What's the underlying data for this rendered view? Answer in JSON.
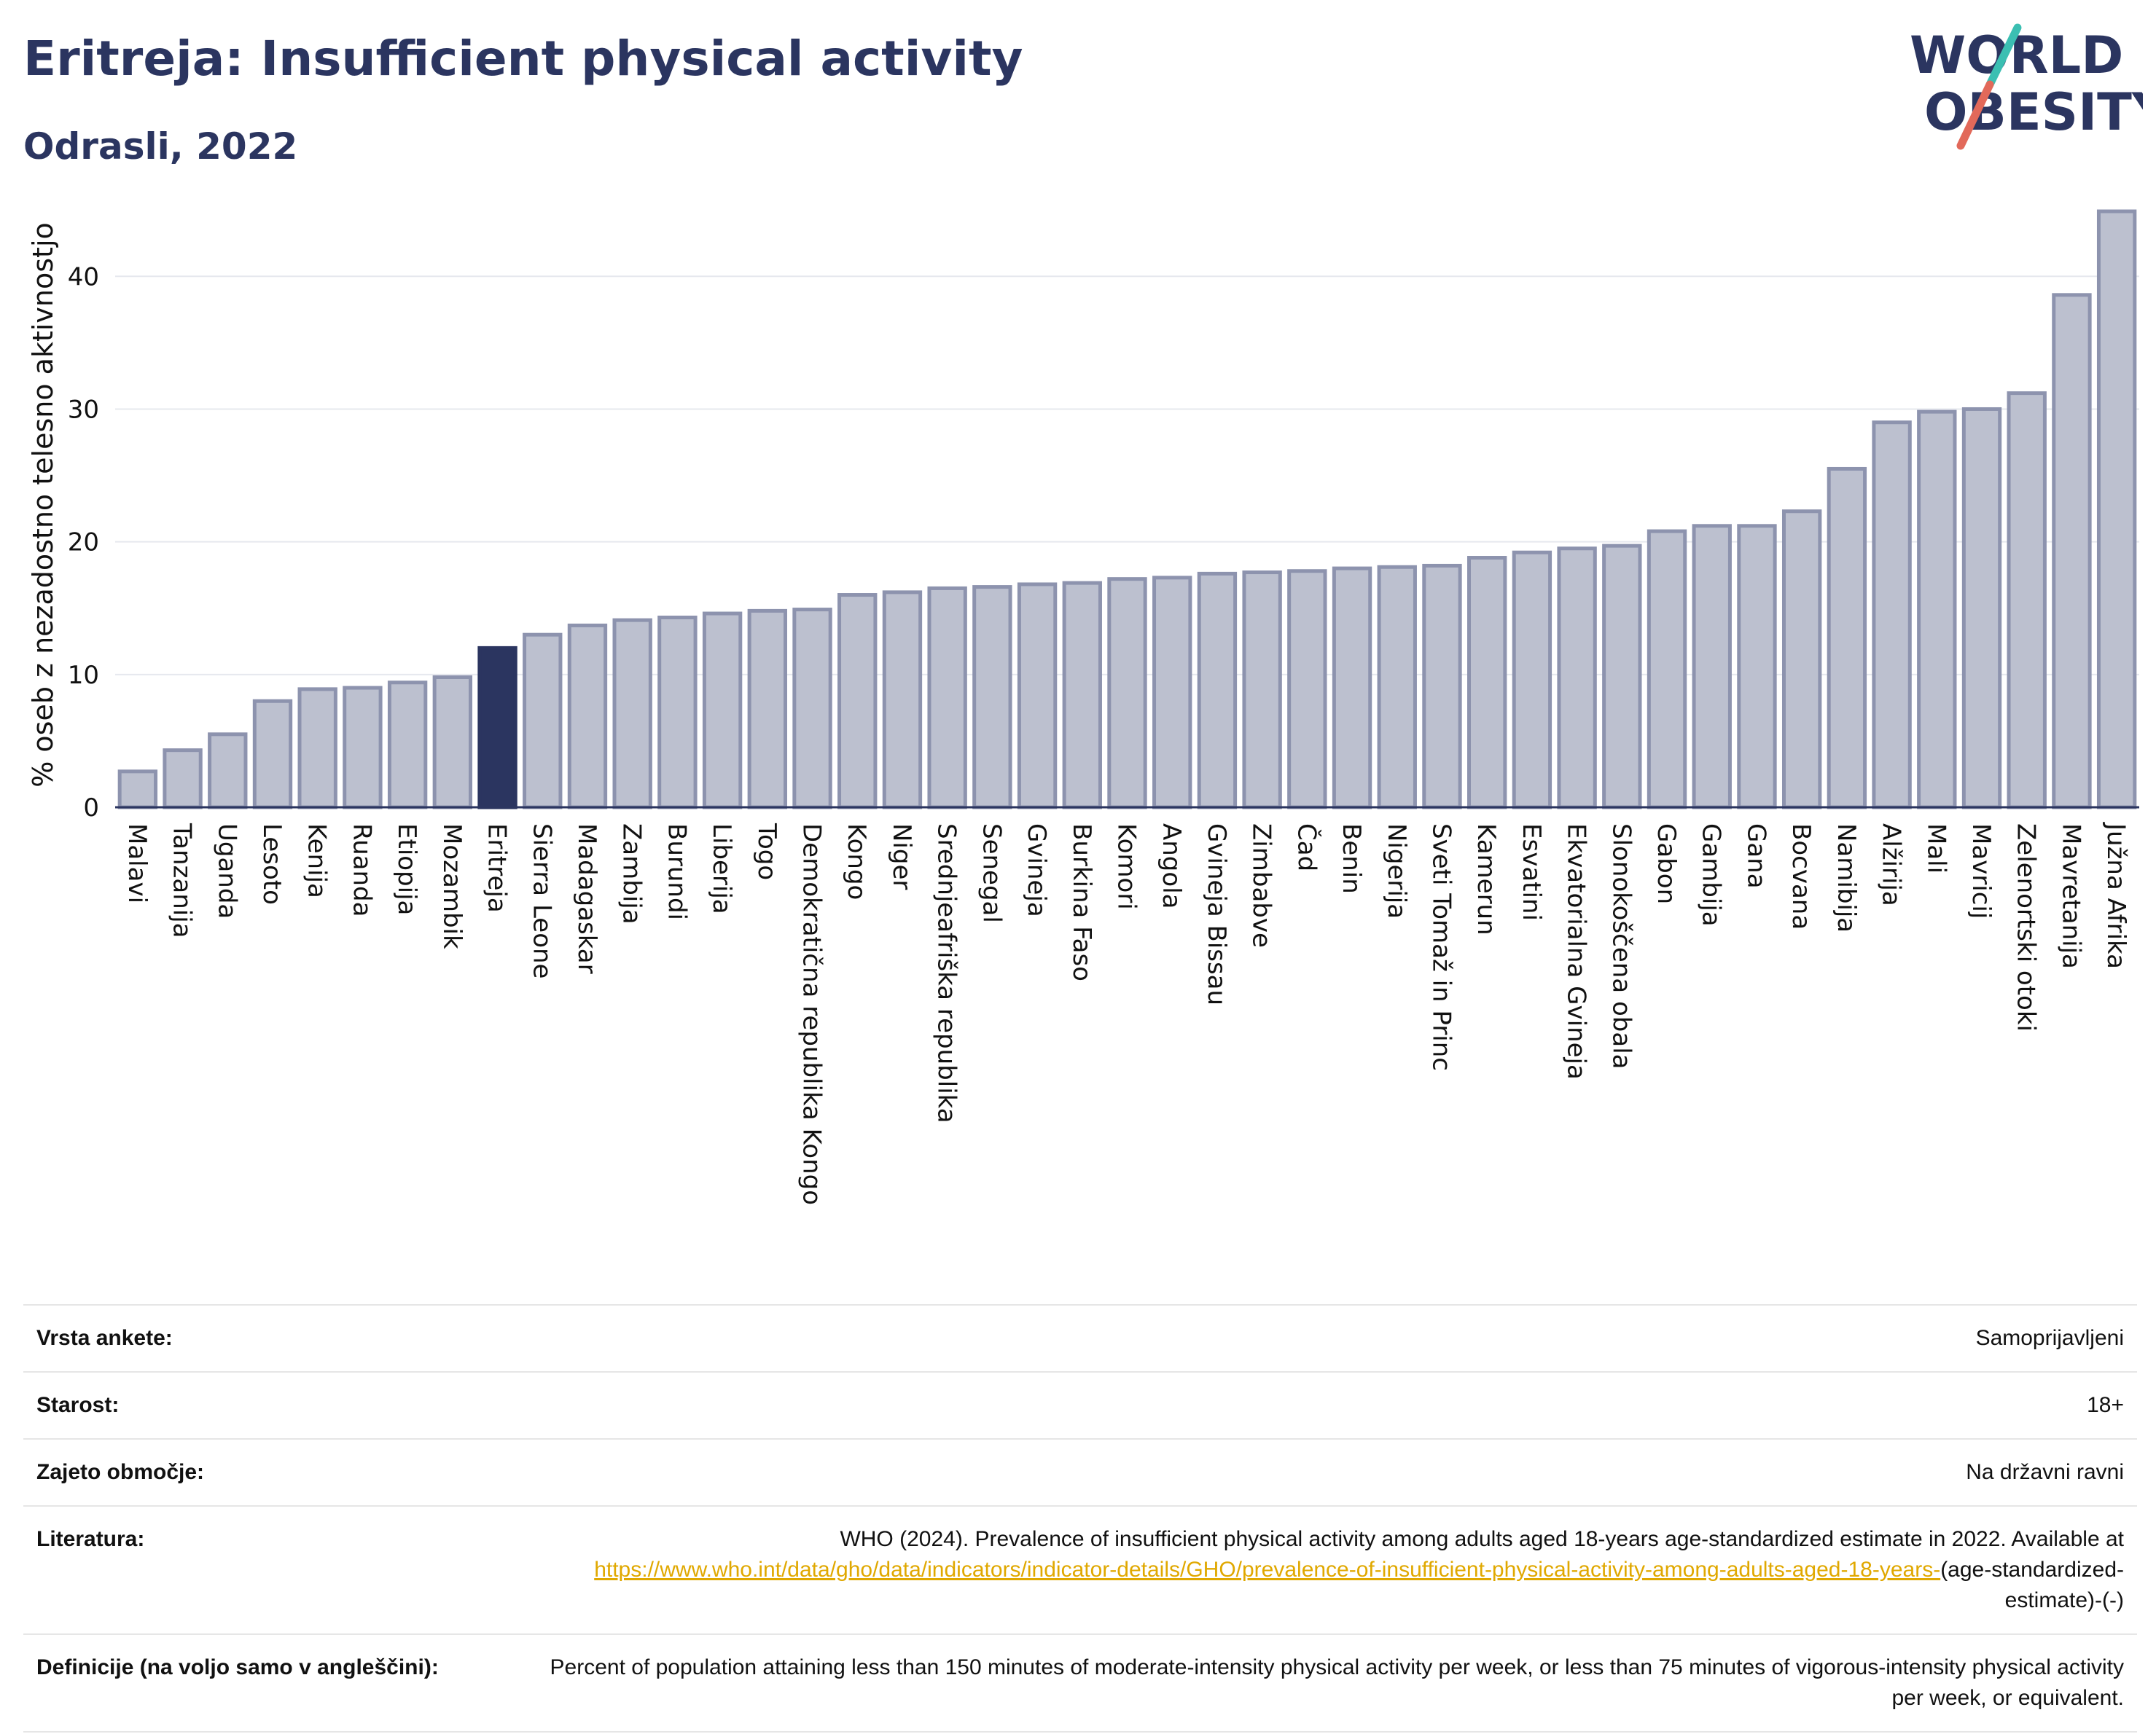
{
  "header": {
    "title": "Eritreja: Insufficient physical activity",
    "subtitle": "Odrasli, 2022"
  },
  "logo": {
    "line1": "WORLD",
    "line2": "OBESITY"
  },
  "colors": {
    "bar": "#bcc0cf",
    "bar_border": "#8d93ae",
    "highlight": "#2b3560",
    "slash_teal": "#3bbfb2",
    "slash_red": "#e2695a"
  },
  "chart_data": {
    "type": "bar",
    "title": "Eritreja: Insufficient physical activity",
    "subtitle": "Odrasli, 2022",
    "xlabel": "",
    "ylabel": "% oseb z nezadostno telesno aktivnostjo",
    "ylim": [
      0,
      46
    ],
    "yticks": [
      0,
      10,
      20,
      30,
      40
    ],
    "grid": true,
    "highlight": "Eritreja",
    "categories": [
      "Malavi",
      "Tanzanija",
      "Uganda",
      "Lesoto",
      "Kenija",
      "Ruanda",
      "Etiopija",
      "Mozambik",
      "Eritreja",
      "Sierra Leone",
      "Madagaskar",
      "Zambija",
      "Burundi",
      "Liberija",
      "Togo",
      "Demokratična republika Kongo",
      "Kongo",
      "Niger",
      "Srednjeafriška republika",
      "Senegal",
      "Gvineja",
      "Burkina Faso",
      "Komori",
      "Angola",
      "Gvineja Bissau",
      "Zimbabve",
      "Čad",
      "Benin",
      "Nigerija",
      "Sveti Tomaž in Princ",
      "Kamerun",
      "Esvatini",
      "Ekvatorialna Gvineja",
      "Slonokoščena obala",
      "Gabon",
      "Gambija",
      "Gana",
      "Bocvana",
      "Namibija",
      "Alžirija",
      "Mali",
      "Mavricij",
      "Zelenortski otoki",
      "Mavretanija",
      "Južna Afrika"
    ],
    "values": [
      2.7,
      4.3,
      5.5,
      8.0,
      8.9,
      9.0,
      9.4,
      9.8,
      12.0,
      13.0,
      13.7,
      14.1,
      14.3,
      14.6,
      14.8,
      14.9,
      16.0,
      16.2,
      16.5,
      16.6,
      16.8,
      16.9,
      17.2,
      17.3,
      17.6,
      17.7,
      17.8,
      18.0,
      18.1,
      18.2,
      18.8,
      19.2,
      19.5,
      19.7,
      20.8,
      21.2,
      21.2,
      22.3,
      25.5,
      29.0,
      29.8,
      30.0,
      31.2,
      38.6,
      44.9
    ]
  },
  "info": [
    {
      "label": "Vrsta ankete:",
      "value": "Samoprijavljeni"
    },
    {
      "label": "Starost:",
      "value": "18+"
    },
    {
      "label": "Zajeto območje:",
      "value": "Na državni ravni"
    },
    {
      "label": "Literatura:",
      "value": "WHO (2024). Prevalence of insufficient physical activity among adults aged 18-years age-standardized estimate in 2022. Available at",
      "link": "https://www.who.int/data/gho/data/indicators/indicator-details/GHO/prevalence-of-insufficient-physical-activity-among-adults-aged-18-years-",
      "suffix": "(age-standardized-estimate)-(-)"
    },
    {
      "label": "Definicije (na voljo samo v angleščini):",
      "value": "Percent of population attaining less than 150 minutes of moderate-intensity physical activity per week, or less than 75 minutes of vigorous-intensity physical activity per week, or equivalent."
    }
  ]
}
